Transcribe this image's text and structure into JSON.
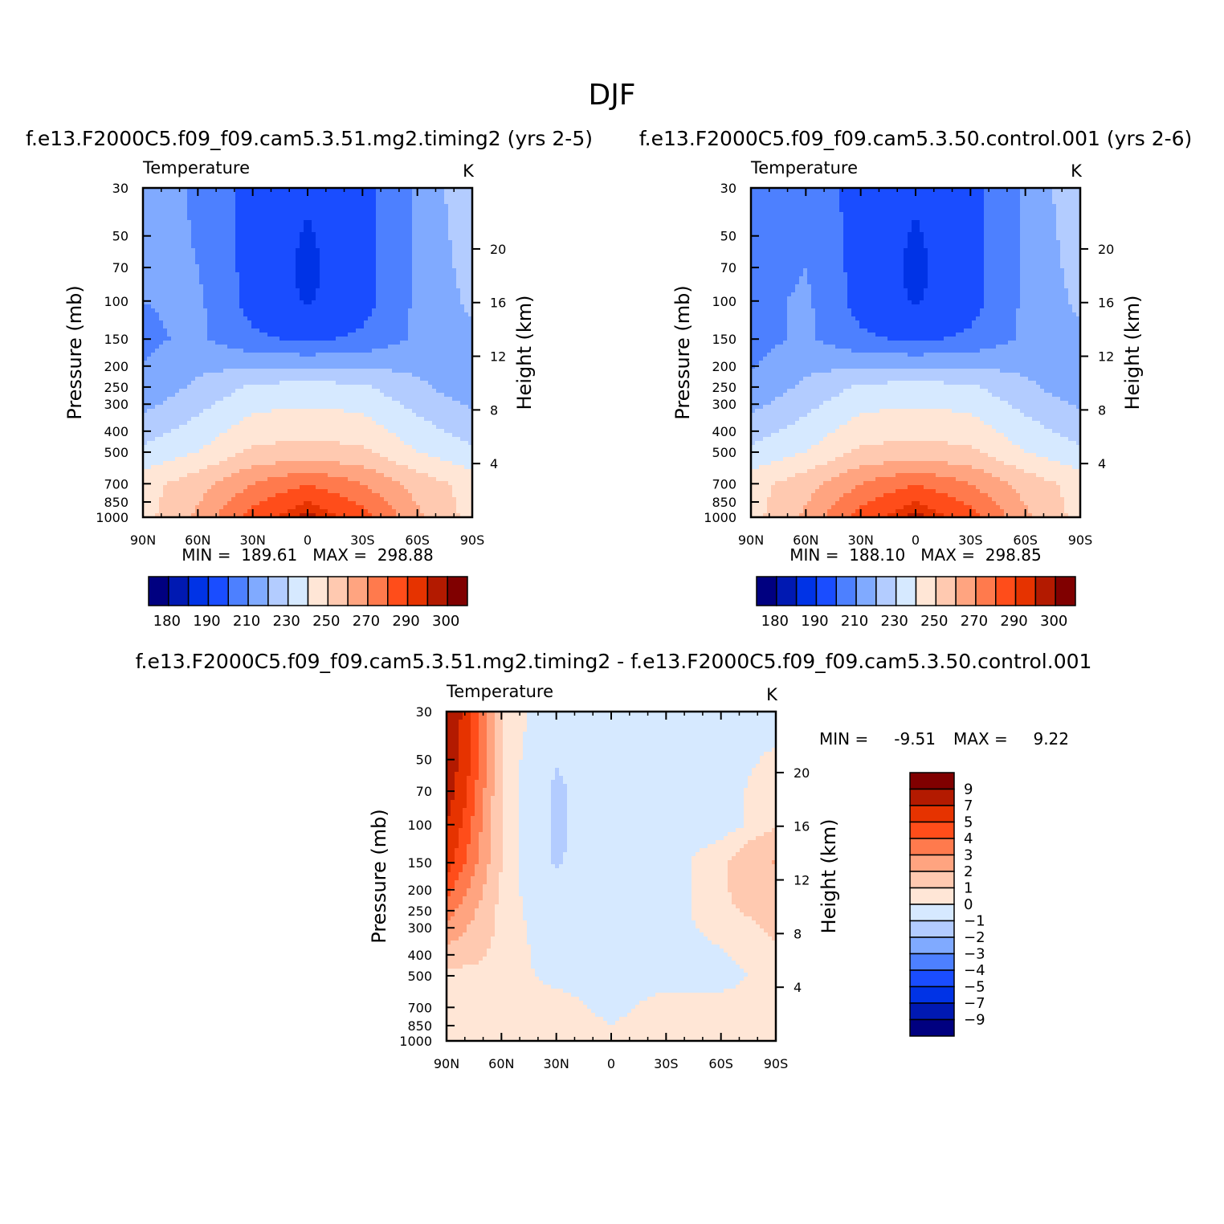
{
  "title": "DJF",
  "palette": {
    "abs": [
      "#000080",
      "#0019b2",
      "#0033e6",
      "#1a4dff",
      "#4d80ff",
      "#80aaff",
      "#b3ccff",
      "#d6e9ff",
      "#ffe6d6",
      "#ffc9b0",
      "#ffa480",
      "#ff7a4d",
      "#ff4d1a",
      "#e63300",
      "#b31a00",
      "#800000"
    ],
    "diff": [
      "#800000",
      "#b31a00",
      "#e63300",
      "#ff4d1a",
      "#ff7a4d",
      "#ffa480",
      "#ffc9b0",
      "#ffe6d6",
      "#d6e9ff",
      "#b3ccff",
      "#80aaff",
      "#4d80ff",
      "#1a4dff",
      "#0033e6",
      "#0019b2",
      "#000080"
    ]
  },
  "chart_data": [
    {
      "type": "contour",
      "title": "f.e13.F2000C5.f09_f09.cam5.3.51.mg2.timing2 (yrs 2-5)",
      "left_label": "Temperature",
      "right_label": "K",
      "xlabel": "",
      "ylabel": "Pressure (mb)",
      "y2label": "Height (km)",
      "x_ticks": [
        "90N",
        "60N",
        "30N",
        "0",
        "30S",
        "60S",
        "90S"
      ],
      "y_ticks": [
        "30",
        "50",
        "70",
        "100",
        "150",
        "200",
        "250",
        "300",
        "400",
        "500",
        "700",
        "850",
        "1000"
      ],
      "y2_ticks": [
        "20",
        "16",
        "12",
        "8",
        "4"
      ],
      "stats": "MIN =  189.61   MAX =  298.88",
      "colorbar_labels": [
        "180",
        "190",
        "210",
        "230",
        "250",
        "270",
        "290",
        "300"
      ],
      "x": [
        "90N",
        "60N",
        "30N",
        "0",
        "30S",
        "60S",
        "90S"
      ],
      "levels_mb": [
        30,
        70,
        100,
        150,
        250,
        500,
        700,
        1000
      ],
      "values": [
        [
          218,
          208,
          196,
          191,
          196,
          212,
          228
        ],
        [
          214,
          210,
          196,
          188,
          196,
          212,
          224
        ],
        [
          210,
          212,
          196,
          189,
          196,
          212,
          222
        ],
        [
          208,
          212,
          202,
          198,
          202,
          212,
          218
        ],
        [
          212,
          222,
          232,
          234,
          232,
          222,
          214
        ],
        [
          232,
          240,
          252,
          254,
          252,
          240,
          232
        ],
        [
          246,
          256,
          270,
          280,
          270,
          256,
          246
        ],
        [
          246,
          262,
          285,
          298,
          285,
          262,
          246
        ]
      ]
    },
    {
      "type": "contour",
      "title": "f.e13.F2000C5.f09_f09.cam5.3.50.control.001 (yrs 2-6)",
      "left_label": "Temperature",
      "right_label": "K",
      "xlabel": "",
      "ylabel": "Pressure (mb)",
      "y2label": "Height (km)",
      "x_ticks": [
        "90N",
        "60N",
        "30N",
        "0",
        "30S",
        "60S",
        "90S"
      ],
      "y_ticks": [
        "30",
        "50",
        "70",
        "100",
        "150",
        "200",
        "250",
        "300",
        "400",
        "500",
        "700",
        "850",
        "1000"
      ],
      "y2_ticks": [
        "20",
        "16",
        "12",
        "8",
        "4"
      ],
      "stats": "MIN =  188.10   MAX =  298.85",
      "colorbar_labels": [
        "180",
        "190",
        "210",
        "230",
        "250",
        "270",
        "290",
        "300"
      ],
      "x": [
        "90N",
        "60N",
        "30N",
        "0",
        "30S",
        "60S",
        "90S"
      ],
      "levels_mb": [
        30,
        70,
        100,
        150,
        250,
        500,
        700,
        1000
      ],
      "values": [
        [
          204,
          206,
          196,
          191,
          196,
          212,
          228
        ],
        [
          204,
          210,
          196,
          188,
          196,
          212,
          224
        ],
        [
          206,
          212,
          196,
          189,
          196,
          212,
          222
        ],
        [
          206,
          212,
          202,
          198,
          202,
          212,
          218
        ],
        [
          212,
          222,
          232,
          234,
          232,
          222,
          214
        ],
        [
          232,
          240,
          252,
          254,
          252,
          240,
          232
        ],
        [
          246,
          256,
          270,
          280,
          270,
          256,
          246
        ],
        [
          246,
          262,
          285,
          298,
          285,
          262,
          246
        ]
      ]
    },
    {
      "type": "contour",
      "title": "f.e13.F2000C5.f09_f09.cam5.3.51.mg2.timing2 - f.e13.F2000C5.f09_f09.cam5.3.50.control.001",
      "left_label": "Temperature",
      "right_label": "K",
      "xlabel": "",
      "ylabel": "Pressure (mb)",
      "y2label": "Height (km)",
      "x_ticks": [
        "90N",
        "60N",
        "30N",
        "0",
        "30S",
        "60S",
        "90S"
      ],
      "y_ticks": [
        "30",
        "50",
        "70",
        "100",
        "150",
        "200",
        "250",
        "300",
        "400",
        "500",
        "700",
        "850",
        "1000"
      ],
      "y2_ticks": [
        "20",
        "16",
        "12",
        "8",
        "4"
      ],
      "stats_min_label": "MIN =",
      "stats_min": "-9.51",
      "stats_max_label": "MAX =",
      "stats_max": "9.22",
      "colorbar_labels": [
        "9",
        "7",
        "5",
        "4",
        "3",
        "2",
        "1",
        "0",
        "-1",
        "-2",
        "-3",
        "-4",
        "-5",
        "-7",
        "-9"
      ],
      "x": [
        "90N",
        "60N",
        "30N",
        "0",
        "30S",
        "60S",
        "90S"
      ],
      "levels_mb": [
        30,
        70,
        100,
        150,
        250,
        500,
        700,
        1000
      ],
      "values": [
        [
          8,
          0.5,
          -0.5,
          -0.3,
          -0.3,
          -0.3,
          -0.3
        ],
        [
          7,
          0.5,
          -1.2,
          -0.3,
          -0.3,
          -0.3,
          0.4
        ],
        [
          6,
          0.5,
          -1.2,
          -0.3,
          -0.3,
          -0.3,
          0.4
        ],
        [
          5,
          0.5,
          -1.1,
          -0.3,
          -0.3,
          0.4,
          1.6
        ],
        [
          3,
          0.2,
          -0.3,
          -0.3,
          -0.3,
          0.4,
          0.7
        ],
        [
          0.2,
          0.3,
          -0.2,
          -0.3,
          -0.3,
          -0.3,
          0.3
        ],
        [
          0.2,
          0.3,
          0.3,
          -0.2,
          0.3,
          0.3,
          0.3
        ],
        [
          0.1,
          0.3,
          0.3,
          0.2,
          0.3,
          0.3,
          0.2
        ]
      ]
    }
  ]
}
